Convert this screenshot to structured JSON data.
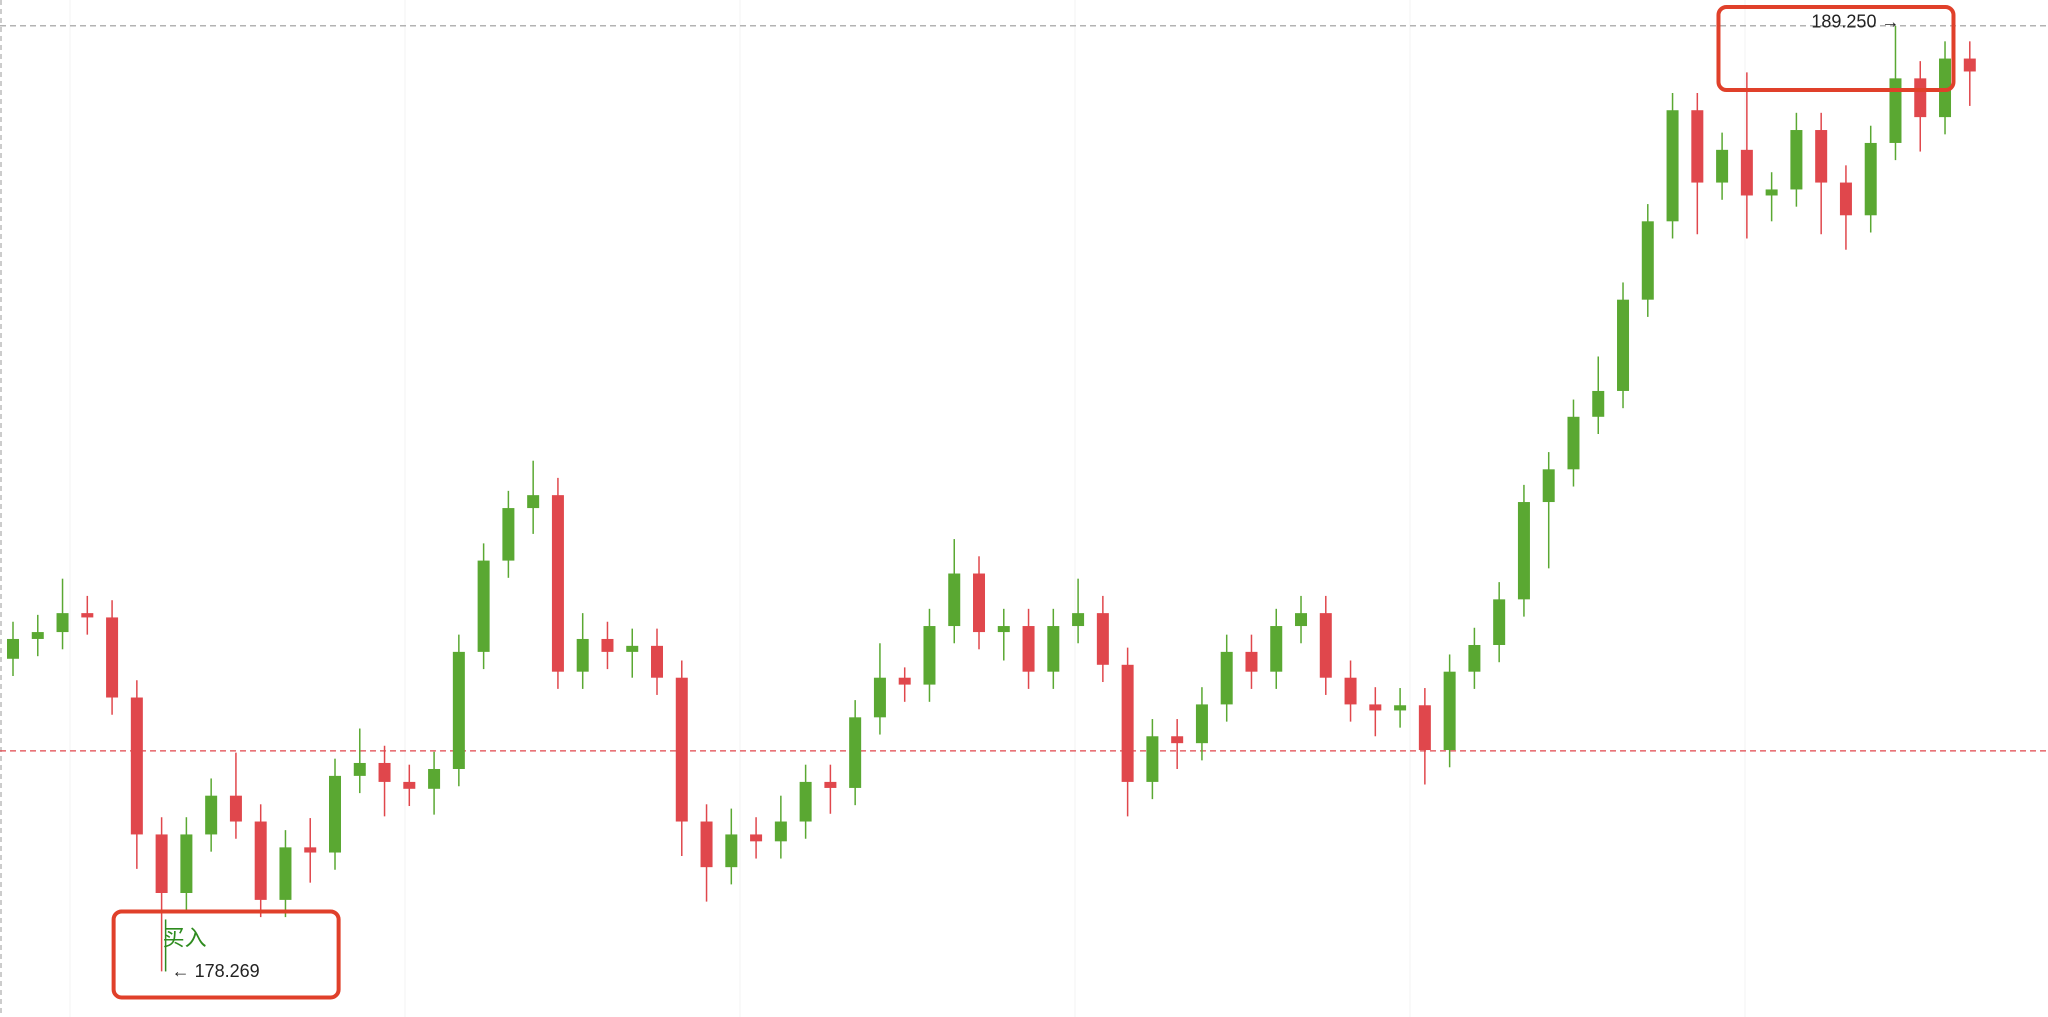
{
  "chart_data": {
    "type": "candlestick",
    "up_color": "#5aa832",
    "down_color": "#e0474c",
    "ylim": [
      177.74,
      189.55
    ],
    "open": [
      181.9,
      182.13,
      182.21,
      182.43,
      182.38,
      181.45,
      179.86,
      179.18,
      179.86,
      180.31,
      180.01,
      179.1,
      179.71,
      179.65,
      180.54,
      180.69,
      180.47,
      180.39,
      180.62,
      181.98,
      183.04,
      183.65,
      183.8,
      181.75,
      182.13,
      181.98,
      182.05,
      181.68,
      180.01,
      179.48,
      179.86,
      179.78,
      180.01,
      180.47,
      180.4,
      181.22,
      181.68,
      181.6,
      182.28,
      182.89,
      182.21,
      182.28,
      181.75,
      182.28,
      182.43,
      181.83,
      180.47,
      181.0,
      180.92,
      181.37,
      181.98,
      181.75,
      182.28,
      182.43,
      181.68,
      181.37,
      181.3,
      181.36,
      180.84,
      181.75,
      182.06,
      182.59,
      183.72,
      184.1,
      184.71,
      185.01,
      186.07,
      186.98,
      188.27,
      187.43,
      187.81,
      187.28,
      187.35,
      188.04,
      187.43,
      187.05,
      187.89,
      188.64,
      188.19,
      188.87
    ],
    "close": [
      182.13,
      182.21,
      182.43,
      182.38,
      181.45,
      179.86,
      179.18,
      179.86,
      180.31,
      180.01,
      179.1,
      179.71,
      179.65,
      180.54,
      180.69,
      180.47,
      180.39,
      180.62,
      181.98,
      183.04,
      183.65,
      183.8,
      181.75,
      182.13,
      181.98,
      182.05,
      181.68,
      180.01,
      179.48,
      179.86,
      179.78,
      180.01,
      180.47,
      180.4,
      181.22,
      181.68,
      181.6,
      182.28,
      182.89,
      182.21,
      182.28,
      181.75,
      182.28,
      182.43,
      181.83,
      180.47,
      181.0,
      180.92,
      181.37,
      181.98,
      181.75,
      182.28,
      182.43,
      181.68,
      181.37,
      181.3,
      181.36,
      180.84,
      181.75,
      182.06,
      182.59,
      183.72,
      184.1,
      184.71,
      185.01,
      186.07,
      186.98,
      188.27,
      187.43,
      187.81,
      187.28,
      187.35,
      188.04,
      187.43,
      187.05,
      187.89,
      188.64,
      188.19,
      188.87,
      188.72
    ],
    "high": [
      182.33,
      182.41,
      182.83,
      182.63,
      182.58,
      181.65,
      180.06,
      180.06,
      180.51,
      180.81,
      180.21,
      179.91,
      180.05,
      180.74,
      181.09,
      180.89,
      180.67,
      180.82,
      182.18,
      183.24,
      183.85,
      184.2,
      184.0,
      182.43,
      182.33,
      182.25,
      182.25,
      181.88,
      180.21,
      180.16,
      180.06,
      180.31,
      180.67,
      180.67,
      181.42,
      182.08,
      181.8,
      182.48,
      183.29,
      183.09,
      182.48,
      182.48,
      182.48,
      182.83,
      182.63,
      182.03,
      181.2,
      181.2,
      181.57,
      182.18,
      182.18,
      182.48,
      182.63,
      182.63,
      181.88,
      181.57,
      181.56,
      181.56,
      181.95,
      182.26,
      182.79,
      183.92,
      184.3,
      184.91,
      185.41,
      186.27,
      187.18,
      188.47,
      188.47,
      188.01,
      188.71,
      187.55,
      188.24,
      188.24,
      187.63,
      188.09,
      189.25,
      188.84,
      189.07,
      189.07
    ],
    "low": [
      181.7,
      181.93,
      182.01,
      182.18,
      181.25,
      179.46,
      178.27,
      178.98,
      179.66,
      179.81,
      178.9,
      178.9,
      179.3,
      179.45,
      180.34,
      180.07,
      180.19,
      180.09,
      180.42,
      181.78,
      182.84,
      183.35,
      181.55,
      181.55,
      181.78,
      181.68,
      181.48,
      179.61,
      179.08,
      179.28,
      179.58,
      179.58,
      179.81,
      180.1,
      180.2,
      181.02,
      181.4,
      181.4,
      182.08,
      182.01,
      181.88,
      181.55,
      181.55,
      182.08,
      181.63,
      180.07,
      180.27,
      180.62,
      180.72,
      181.17,
      181.55,
      181.55,
      182.08,
      181.48,
      181.17,
      181.0,
      181.1,
      180.44,
      180.64,
      181.55,
      181.86,
      182.39,
      182.95,
      183.9,
      184.51,
      184.81,
      185.87,
      186.78,
      186.83,
      187.23,
      186.78,
      186.98,
      187.15,
      186.83,
      186.65,
      186.85,
      187.69,
      187.79,
      187.99,
      188.32
    ],
    "reference_line": {
      "value": 180.83,
      "color": "#e0474c"
    },
    "high_marker": {
      "price": 189.25,
      "price_label": "189.250 →",
      "color": "#9a9a9a"
    },
    "buy_marker": {
      "label": "买入",
      "price": 178.269,
      "price_label": "← 178.269",
      "color": "#2e8b1e"
    }
  }
}
